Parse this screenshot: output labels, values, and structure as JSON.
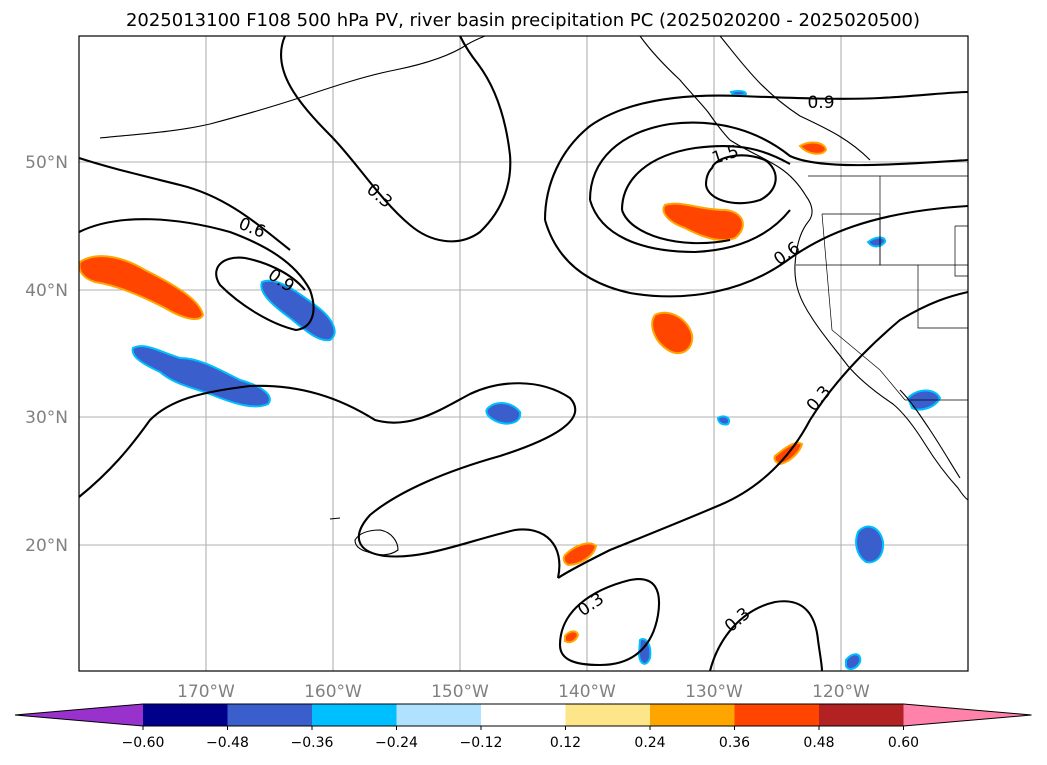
{
  "title": "2025013100 F108 500 hPa PV, river basin precipitation PC (2025020200 - 2025020500)",
  "lon_ticks": [
    "170°W",
    "160°W",
    "150°W",
    "140°W",
    "130°W",
    "120°W"
  ],
  "lat_ticks": [
    "50°N",
    "40°N",
    "30°N",
    "20°N"
  ],
  "contour_labels": [
    "0.3",
    "0.6",
    "0.9",
    "1.5",
    "0.9",
    "0.6",
    "0.3",
    "0.3",
    "0.3"
  ],
  "colorbar": {
    "ticks": [
      "−0.60",
      "−0.48",
      "−0.36",
      "−0.24",
      "−0.12",
      "0.12",
      "0.24",
      "0.36",
      "0.48",
      "0.60"
    ],
    "colors": [
      "#9932cc",
      "#00008b",
      "#3a5fcd",
      "#00bfff",
      "#b0e2ff",
      "#ffffff",
      "#fde68a",
      "#ffa500",
      "#ff4500",
      "#b22222",
      "#ff82ab"
    ]
  },
  "colors": {
    "negative_fill": "#3a5fcd",
    "negative_edge": "#00bfff",
    "positive_fill": "#ff4500",
    "positive_edge": "#ffa500"
  }
}
